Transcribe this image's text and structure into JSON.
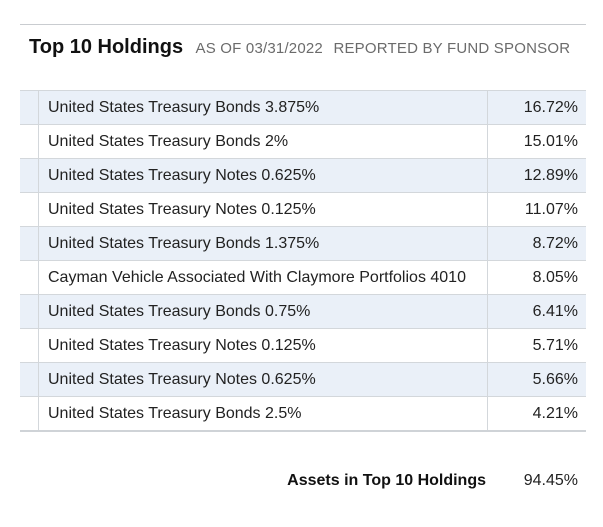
{
  "header": {
    "title": "Top 10 Holdings",
    "as_of": "AS OF 03/31/2022",
    "reported_by": "REPORTED BY FUND SPONSOR"
  },
  "holdings": [
    {
      "name": "United States Treasury Bonds 3.875%",
      "weight": "16.72%"
    },
    {
      "name": "United States Treasury Bonds 2%",
      "weight": "15.01%"
    },
    {
      "name": "United States Treasury Notes 0.625%",
      "weight": "12.89%"
    },
    {
      "name": "United States Treasury Notes 0.125%",
      "weight": "11.07%"
    },
    {
      "name": "United States Treasury Bonds 1.375%",
      "weight": "8.72%"
    },
    {
      "name": "Cayman Vehicle Associated With Claymore Portfolios 4010",
      "weight": "8.05%"
    },
    {
      "name": "United States Treasury Bonds 0.75%",
      "weight": "6.41%"
    },
    {
      "name": "United States Treasury Notes 0.125%",
      "weight": "5.71%"
    },
    {
      "name": "United States Treasury Notes 0.625%",
      "weight": "5.66%"
    },
    {
      "name": "United States Treasury Bonds 2.5%",
      "weight": "4.21%"
    }
  ],
  "summary": {
    "label": "Assets in Top 10 Holdings",
    "value": "94.45%"
  },
  "colors": {
    "alt_row": "#eaf0f8",
    "border": "#d3d7db"
  }
}
